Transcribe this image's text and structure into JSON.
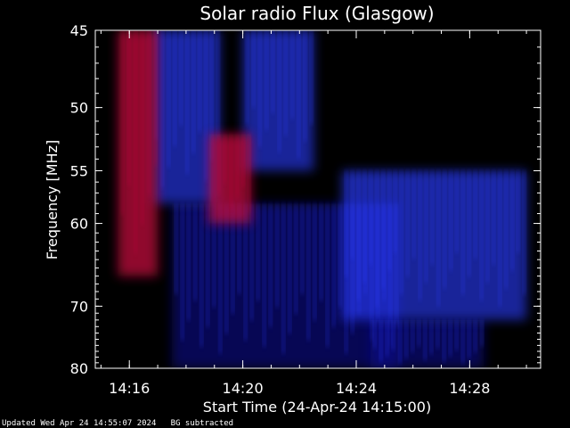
{
  "chart_data": {
    "type": "heatmap",
    "title": "Solar radio Flux (Glasgow)",
    "xlabel": "Start Time (24-Apr-24 14:15:00)",
    "ylabel": "Frequency [MHz]",
    "x_range_minutes_after_start": [
      -0.2,
      15.5
    ],
    "y_range_mhz": [
      45,
      80
    ],
    "y_scale": "reciprocal",
    "x_ticks": [
      {
        "label": "14:16",
        "minutes": 1
      },
      {
        "label": "14:20",
        "minutes": 5
      },
      {
        "label": "14:24",
        "minutes": 9
      },
      {
        "label": "14:28",
        "minutes": 13
      }
    ],
    "y_ticks": [
      {
        "label": "45",
        "mhz": 45
      },
      {
        "label": "50",
        "mhz": 50
      },
      {
        "label": "55",
        "mhz": 55
      },
      {
        "label": "60",
        "mhz": 60
      },
      {
        "label": "70",
        "mhz": 70
      },
      {
        "label": "80",
        "mhz": 80
      }
    ],
    "colors": {
      "background": "#000000",
      "low": "#0a0a8c",
      "mid": "#2a3cff",
      "high": "#c0103c"
    },
    "emission_regions": [
      {
        "t0": 0.6,
        "t1": 2.0,
        "f0": 45,
        "f1": 66,
        "level": "high"
      },
      {
        "t0": 1.8,
        "t1": 4.2,
        "f0": 45,
        "f1": 58,
        "level": "mid"
      },
      {
        "t0": 3.8,
        "t1": 5.3,
        "f0": 52,
        "f1": 60,
        "level": "high"
      },
      {
        "t0": 5.0,
        "t1": 7.5,
        "f0": 45,
        "f1": 55,
        "level": "mid"
      },
      {
        "t0": 2.5,
        "t1": 10.5,
        "f0": 58,
        "f1": 80,
        "level": "low"
      },
      {
        "t0": 8.5,
        "t1": 15.0,
        "f0": 55,
        "f1": 72,
        "level": "mid"
      },
      {
        "t0": 9.5,
        "t1": 13.5,
        "f0": 72,
        "f1": 80,
        "level": "low"
      }
    ]
  },
  "footer": {
    "updated": "Updated Wed Apr 24 14:55:07 2024",
    "mode": "BG subtracted"
  }
}
